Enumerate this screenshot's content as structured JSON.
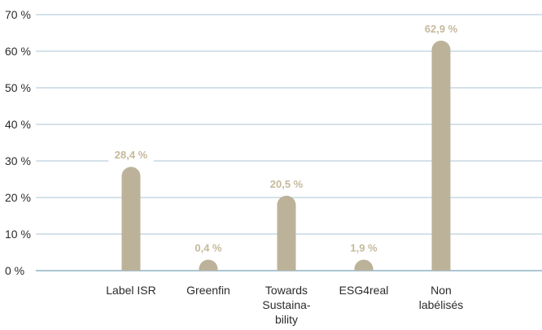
{
  "chart_data": {
    "type": "bar",
    "categories": [
      [
        "Label ISR"
      ],
      [
        "Greenfin"
      ],
      [
        "Towards",
        "Sustaina-",
        "bility"
      ],
      [
        "ESG4real"
      ],
      [
        "Non",
        "labélisés"
      ]
    ],
    "values": [
      28.4,
      0.4,
      20.5,
      1.9,
      62.9
    ],
    "data_labels": [
      "28,4 %",
      "0,4 %",
      "20,5 %",
      "1,9 %",
      "62,9 %"
    ],
    "ylim": [
      0,
      70
    ],
    "y_ticks": [
      0,
      10,
      20,
      30,
      40,
      50,
      60,
      70
    ],
    "y_tick_labels": [
      "0 %",
      "10 %",
      "20 %",
      "30 %",
      "40 %",
      "50 %",
      "60 %",
      "70 %"
    ],
    "grid": true,
    "title": "",
    "xlabel": "",
    "ylabel": ""
  },
  "colors": {
    "bar": "#bcb29a",
    "data_label": "#c5b99b",
    "grid": "#a9c6d4",
    "axis": "#8fb4c4",
    "text": "#2b2b2b"
  }
}
